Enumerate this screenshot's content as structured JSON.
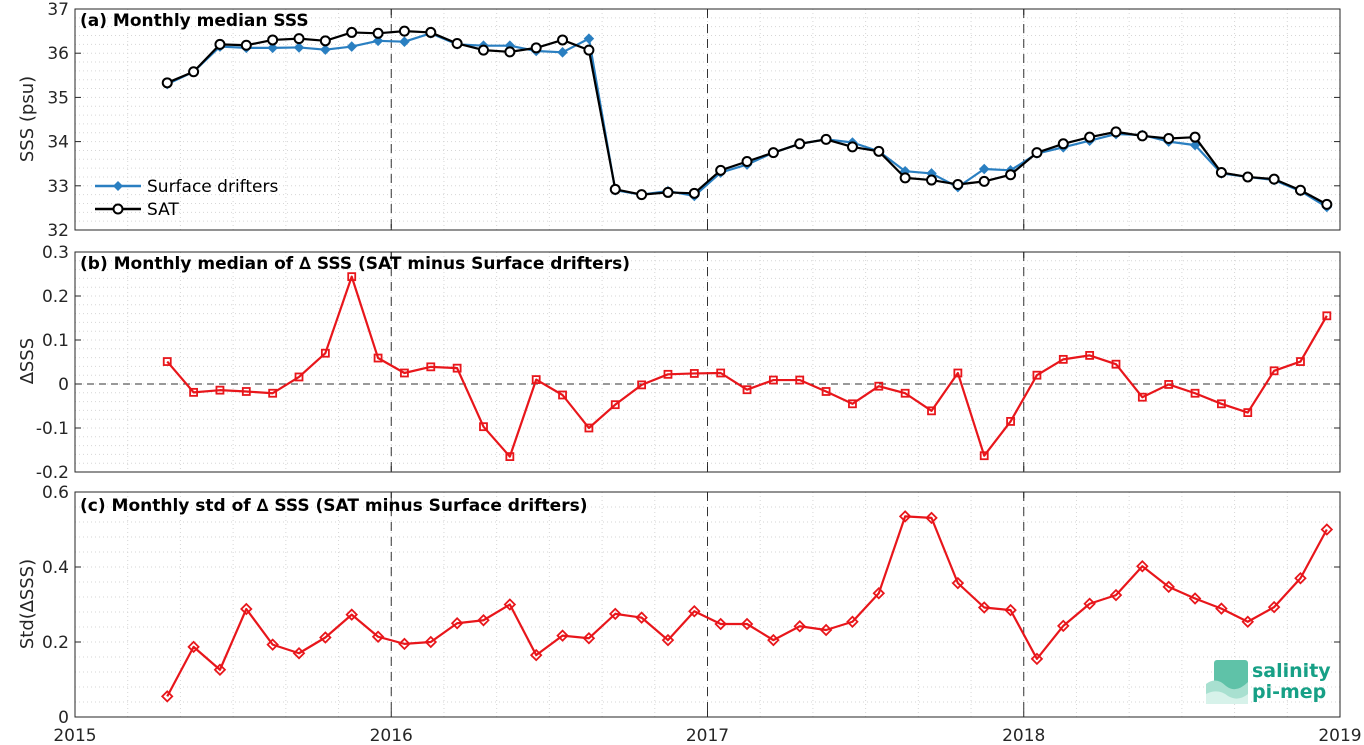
{
  "chart_data": [
    {
      "type": "line",
      "title": "(a) Monthly median SSS",
      "ylabel": "SSS (psu)",
      "ylim": [
        32,
        37
      ],
      "yticks": [
        "32",
        "33",
        "34",
        "35",
        "36",
        "37"
      ],
      "grid": "dotted minor grid, dashed year lines",
      "legend_position": "bottom-left",
      "series": [
        {
          "name": "Surface drifters",
          "color": "#2a7fc1",
          "marker": "diamond",
          "x": [
            "2015-04",
            "2015-05",
            "2015-06",
            "2015-07",
            "2015-08",
            "2015-09",
            "2015-10",
            "2015-11",
            "2015-12",
            "2016-01",
            "2016-02",
            "2016-03",
            "2016-04",
            "2016-05",
            "2016-06",
            "2016-07",
            "2016-08",
            "2016-09",
            "2016-10",
            "2016-11",
            "2016-12",
            "2017-01",
            "2017-02",
            "2017-03",
            "2017-04",
            "2017-05",
            "2017-06",
            "2017-07",
            "2017-08",
            "2017-09",
            "2017-10",
            "2017-11",
            "2017-12",
            "2018-01",
            "2018-02",
            "2018-03",
            "2018-04",
            "2018-05",
            "2018-06",
            "2018-07",
            "2018-08",
            "2018-09",
            "2018-10",
            "2018-11",
            "2018-12"
          ],
          "values": [
            35.3,
            35.58,
            36.15,
            36.12,
            36.12,
            36.13,
            36.08,
            36.15,
            36.28,
            36.26,
            36.45,
            36.2,
            36.17,
            36.17,
            36.05,
            36.02,
            36.33,
            32.9,
            32.8,
            32.88,
            32.77,
            33.3,
            33.48,
            33.75,
            33.95,
            34.05,
            33.98,
            33.78,
            33.33,
            33.28,
            32.97,
            33.38,
            33.35,
            33.73,
            33.87,
            34.02,
            34.17,
            34.15,
            34.0,
            33.92,
            33.28,
            33.2,
            33.13,
            32.88,
            32.52
          ]
        },
        {
          "name": "SAT",
          "color": "#000000",
          "marker": "circle",
          "x": [
            "2015-04",
            "2015-05",
            "2015-06",
            "2015-07",
            "2015-08",
            "2015-09",
            "2015-10",
            "2015-11",
            "2015-12",
            "2016-01",
            "2016-02",
            "2016-03",
            "2016-04",
            "2016-05",
            "2016-06",
            "2016-07",
            "2016-08",
            "2016-09",
            "2016-10",
            "2016-11",
            "2016-12",
            "2017-01",
            "2017-02",
            "2017-03",
            "2017-04",
            "2017-05",
            "2017-06",
            "2017-07",
            "2017-08",
            "2017-09",
            "2017-10",
            "2017-11",
            "2017-12",
            "2018-01",
            "2018-02",
            "2018-03",
            "2018-04",
            "2018-05",
            "2018-06",
            "2018-07",
            "2018-08",
            "2018-09",
            "2018-10",
            "2018-11",
            "2018-12"
          ],
          "values": [
            35.33,
            35.58,
            36.2,
            36.18,
            36.3,
            36.33,
            36.28,
            36.47,
            36.45,
            36.5,
            36.47,
            36.22,
            36.07,
            36.03,
            36.12,
            36.3,
            36.07,
            32.92,
            32.8,
            32.85,
            32.83,
            33.35,
            33.55,
            33.75,
            33.95,
            34.05,
            33.88,
            33.78,
            33.18,
            33.13,
            33.03,
            33.1,
            33.25,
            33.75,
            33.95,
            34.1,
            34.22,
            34.13,
            34.07,
            34.1,
            33.3,
            33.2,
            33.15,
            32.9,
            32.58
          ]
        }
      ]
    },
    {
      "type": "line",
      "title": "(b) Monthly median of ∆ SSS (SAT minus Surface drifters)",
      "ylabel": "∆SSS",
      "ylim": [
        -0.2,
        0.3
      ],
      "yticks": [
        "-0.2",
        "-0.1",
        "0",
        "0.1",
        "0.2",
        "0.3"
      ],
      "zero_line": "dashed",
      "series": [
        {
          "color": "#e8161b",
          "marker": "square",
          "x": [
            "2015-04",
            "2015-05",
            "2015-06",
            "2015-07",
            "2015-08",
            "2015-09",
            "2015-10",
            "2015-11",
            "2015-12",
            "2016-01",
            "2016-02",
            "2016-03",
            "2016-04",
            "2016-05",
            "2016-06",
            "2016-07",
            "2016-08",
            "2016-09",
            "2016-10",
            "2016-11",
            "2016-12",
            "2017-01",
            "2017-02",
            "2017-03",
            "2017-04",
            "2017-05",
            "2017-06",
            "2017-07",
            "2017-08",
            "2017-09",
            "2017-10",
            "2017-11",
            "2017-12",
            "2018-01",
            "2018-02",
            "2018-03",
            "2018-04",
            "2018-05",
            "2018-06",
            "2018-07",
            "2018-08",
            "2018-09",
            "2018-10",
            "2018-11",
            "2018-12"
          ],
          "values": [
            0.051,
            -0.019,
            -0.014,
            -0.017,
            -0.021,
            0.016,
            0.07,
            0.244,
            0.059,
            0.025,
            0.039,
            0.036,
            -0.097,
            -0.165,
            0.01,
            -0.025,
            -0.1,
            -0.047,
            -0.002,
            0.022,
            0.024,
            0.025,
            -0.013,
            0.009,
            0.009,
            -0.017,
            -0.045,
            -0.005,
            -0.021,
            -0.061,
            0.025,
            -0.163,
            -0.085,
            0.02,
            0.056,
            0.065,
            0.045,
            -0.03,
            -0.001,
            -0.021,
            -0.045,
            -0.065,
            0.03,
            0.051,
            0.155
          ]
        }
      ]
    },
    {
      "type": "line",
      "title": "(c) Monthly std of ∆ SSS (SAT minus Surface drifters)",
      "ylabel": "Std(∆SSS)",
      "ylim": [
        0,
        0.6
      ],
      "yticks": [
        "0",
        "0.2",
        "0.4",
        "0.6"
      ],
      "xlim": [
        "2015",
        "2019"
      ],
      "xticks": [
        "2015",
        "2016",
        "2017",
        "2018",
        "2019"
      ],
      "series": [
        {
          "color": "#e8161b",
          "marker": "diamond",
          "x": [
            "2015-04",
            "2015-05",
            "2015-06",
            "2015-07",
            "2015-08",
            "2015-09",
            "2015-10",
            "2015-11",
            "2015-12",
            "2016-01",
            "2016-02",
            "2016-03",
            "2016-04",
            "2016-05",
            "2016-06",
            "2016-07",
            "2016-08",
            "2016-09",
            "2016-10",
            "2016-11",
            "2016-12",
            "2017-01",
            "2017-02",
            "2017-03",
            "2017-04",
            "2017-05",
            "2017-06",
            "2017-07",
            "2017-08",
            "2017-09",
            "2017-10",
            "2017-11",
            "2017-12",
            "2018-01",
            "2018-02",
            "2018-03",
            "2018-04",
            "2018-05",
            "2018-06",
            "2018-07",
            "2018-08",
            "2018-09",
            "2018-10",
            "2018-11",
            "2018-12"
          ],
          "values": [
            0.055,
            0.187,
            0.126,
            0.288,
            0.193,
            0.17,
            0.212,
            0.273,
            0.214,
            0.195,
            0.2,
            0.25,
            0.258,
            0.3,
            0.165,
            0.217,
            0.21,
            0.275,
            0.265,
            0.205,
            0.282,
            0.248,
            0.248,
            0.205,
            0.242,
            0.232,
            0.254,
            0.33,
            0.535,
            0.531,
            0.357,
            0.292,
            0.285,
            0.155,
            0.243,
            0.302,
            0.325,
            0.402,
            0.347,
            0.316,
            0.289,
            0.254,
            0.293,
            0.37,
            0.5
          ]
        }
      ]
    }
  ],
  "logo": {
    "line1": "salinity",
    "line2": "pi-mep",
    "color": "#17a086"
  }
}
